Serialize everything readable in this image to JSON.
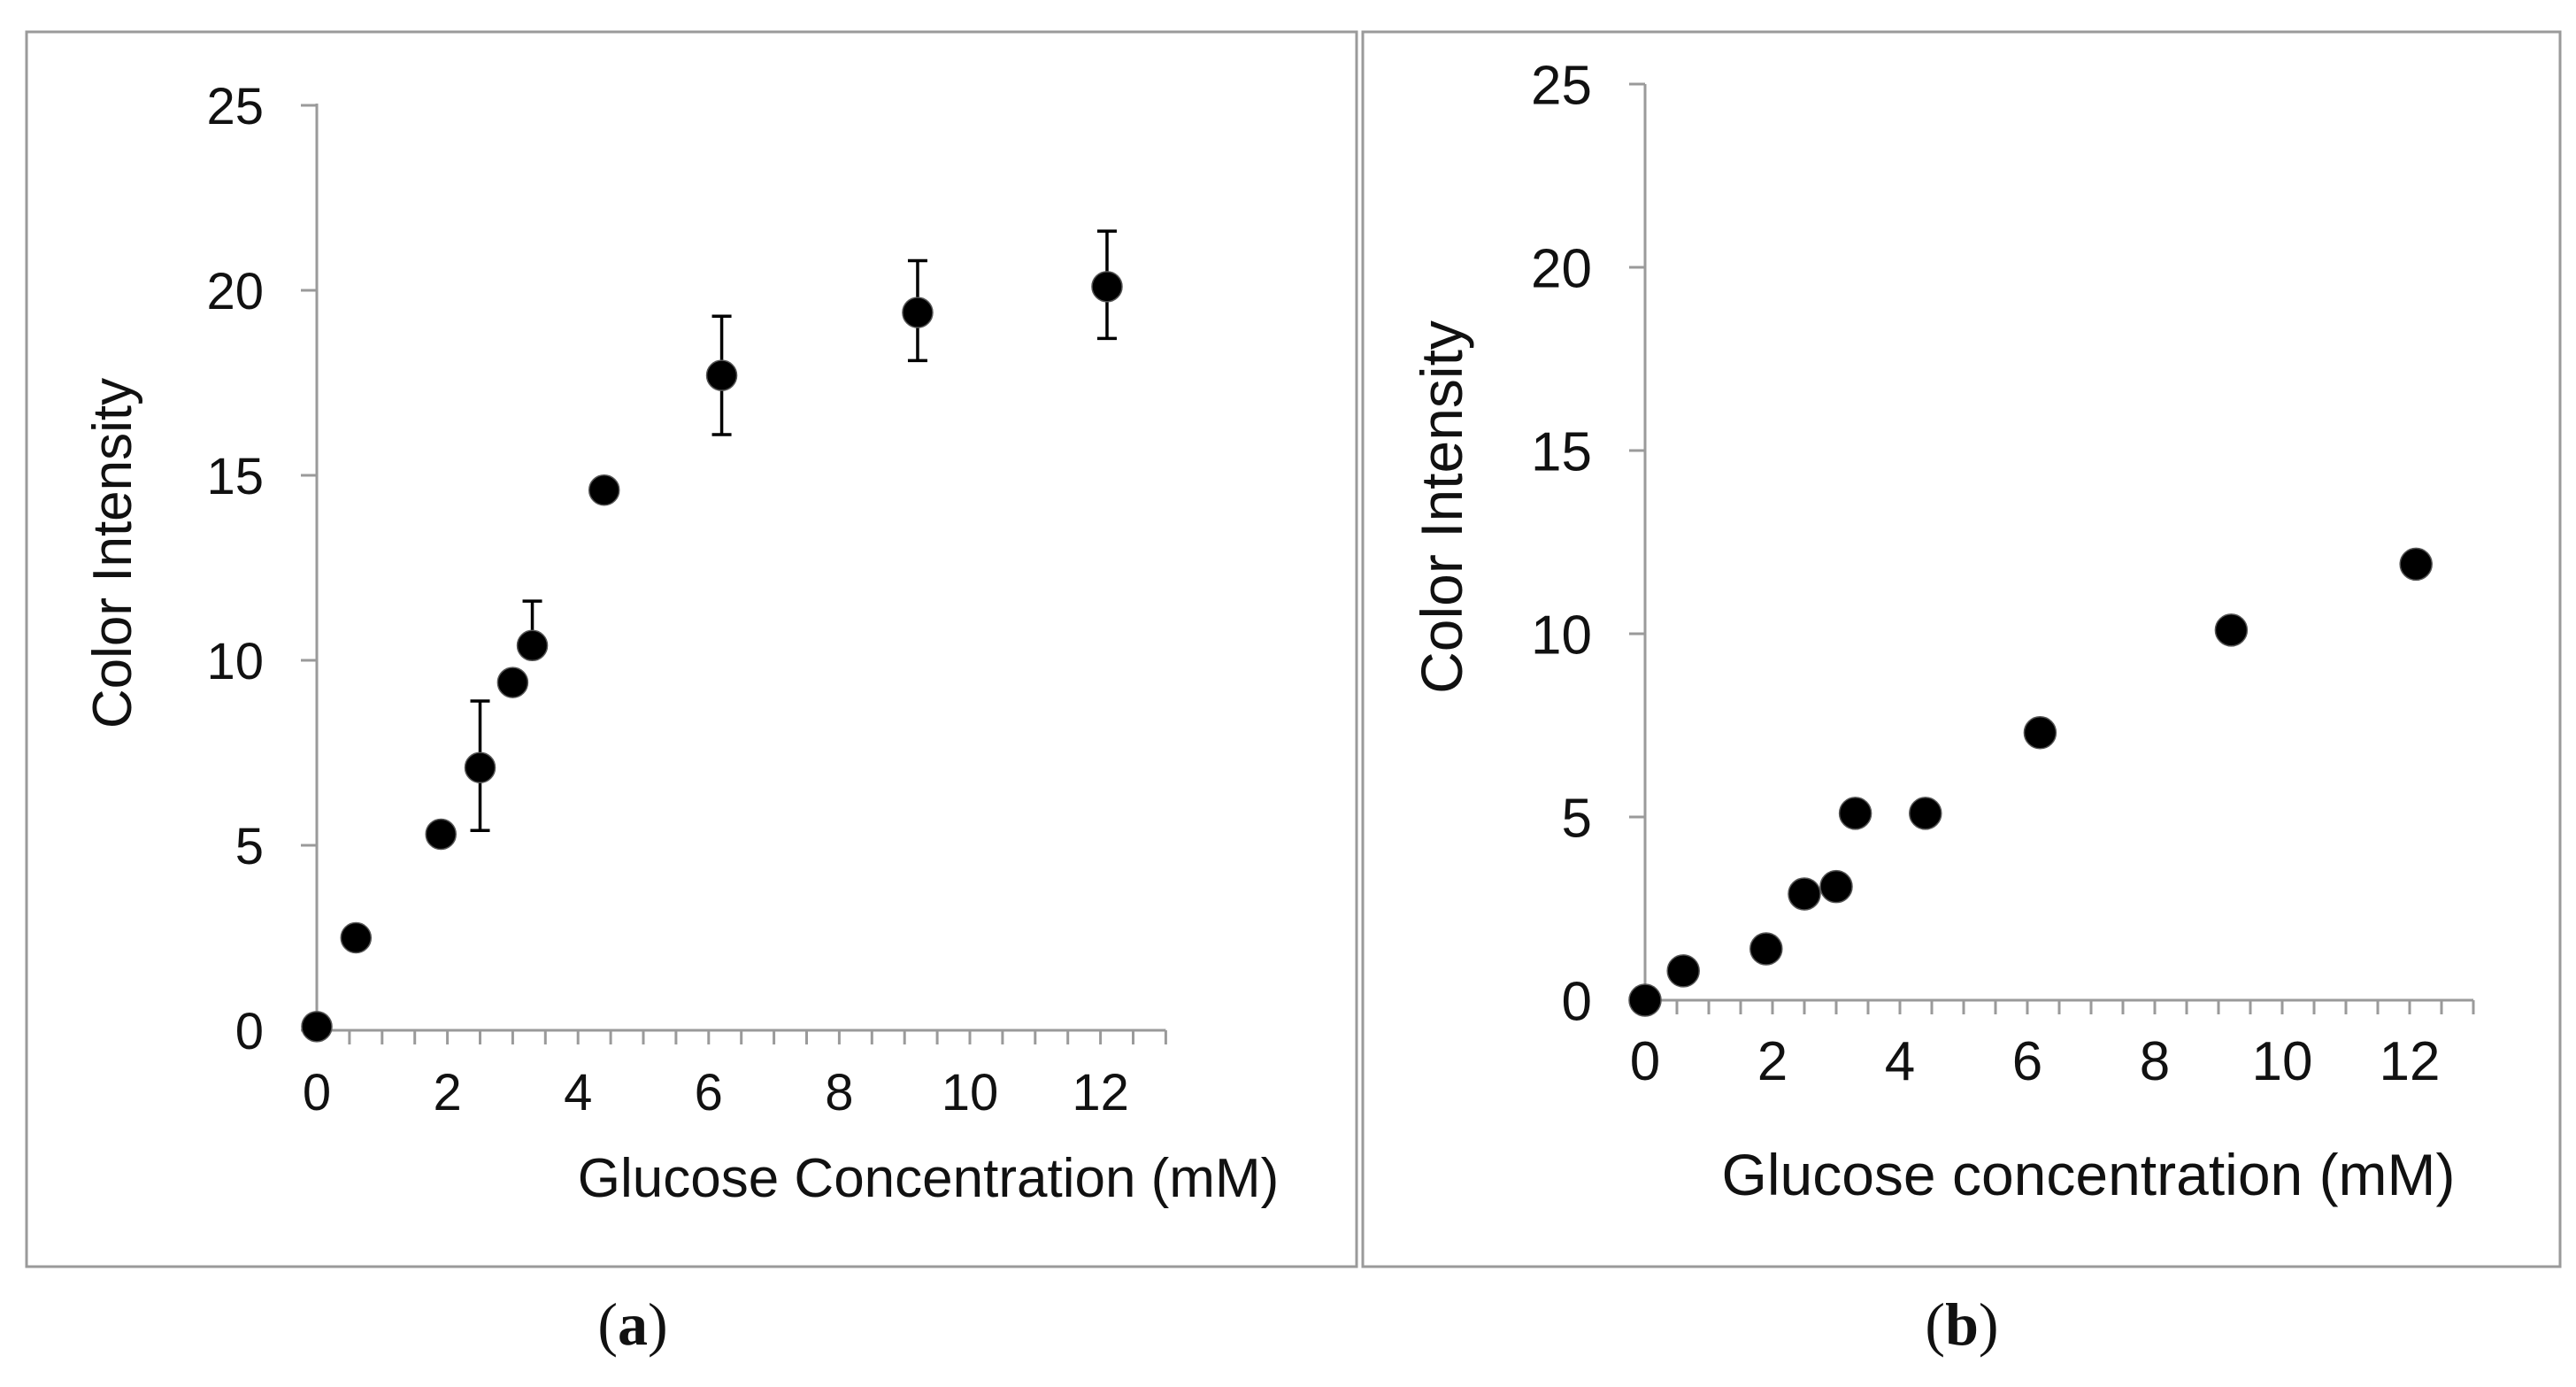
{
  "colors": {
    "axis": "#9a9a9a",
    "frame": "#9a9a9a",
    "marker": "#000000",
    "text": "#111111"
  },
  "chart_data": [
    {
      "type": "scatter",
      "caption_letter": "a",
      "xlabel": "Glucose Concentration (mM)",
      "ylabel": "Color Intensity",
      "xlim": [
        0,
        13
      ],
      "ylim": [
        0,
        25
      ],
      "xticks": [
        0,
        2,
        4,
        6,
        8,
        10,
        12
      ],
      "yticks": [
        0,
        5,
        10,
        15,
        20,
        25
      ],
      "x_minor_step": 0.5,
      "points": [
        {
          "x": 0.0,
          "y": 0.1
        },
        {
          "x": 0.6,
          "y": 2.5
        },
        {
          "x": 1.9,
          "y": 5.3
        },
        {
          "x": 2.5,
          "y": 7.1,
          "err_up": 1.8,
          "err_down": 1.7
        },
        {
          "x": 3.0,
          "y": 9.4
        },
        {
          "x": 3.3,
          "y": 10.4,
          "err_up": 1.2
        },
        {
          "x": 4.4,
          "y": 14.6
        },
        {
          "x": 6.2,
          "y": 17.7,
          "err_up": 1.6,
          "err_down": 1.6
        },
        {
          "x": 9.2,
          "y": 19.4,
          "err_up": 1.4,
          "err_down": 1.3
        },
        {
          "x": 12.1,
          "y": 20.1,
          "err_up": 1.5,
          "err_down": 1.4
        }
      ]
    },
    {
      "type": "scatter",
      "caption_letter": "b",
      "xlabel": "Glucose concentration (mM)",
      "ylabel": "Color Intensity",
      "xlim": [
        0,
        13
      ],
      "ylim": [
        0,
        25
      ],
      "xticks": [
        0,
        2,
        4,
        6,
        8,
        10,
        12
      ],
      "yticks": [
        0,
        5,
        10,
        15,
        20,
        25
      ],
      "x_minor_step": 0.5,
      "points": [
        {
          "x": 0.0,
          "y": 0.0
        },
        {
          "x": 0.6,
          "y": 0.8
        },
        {
          "x": 1.9,
          "y": 1.4
        },
        {
          "x": 2.5,
          "y": 2.9
        },
        {
          "x": 3.0,
          "y": 3.1
        },
        {
          "x": 3.3,
          "y": 5.1
        },
        {
          "x": 4.4,
          "y": 5.1
        },
        {
          "x": 6.2,
          "y": 7.3
        },
        {
          "x": 9.2,
          "y": 10.1
        },
        {
          "x": 12.1,
          "y": 11.9
        }
      ]
    }
  ]
}
